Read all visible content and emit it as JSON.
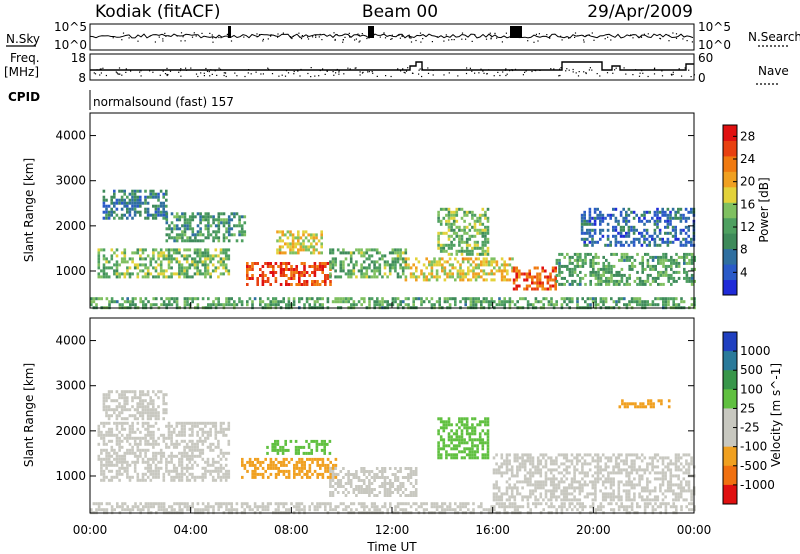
{
  "header": {
    "station": "Kodiak (fitACF)",
    "beam": "Beam 00",
    "date": "29/Apr/2009"
  },
  "params": {
    "nsky_label": "N.Sky",
    "nsearch_label": "N.Search",
    "noise_ticks": [
      "10^5",
      "10^0"
    ],
    "freq_label": "Freq.",
    "freq_unit": "[MHz]",
    "freq_ticks": [
      "18",
      "8"
    ],
    "nave_label": "Nave",
    "nave_ticks": [
      "60",
      "0"
    ],
    "cpid_label": "CPID",
    "cpid_value": "normalsound (fast) 157"
  },
  "chart_data": [
    {
      "type": "heatmap",
      "title": "",
      "xlabel": "Time UT",
      "ylabel": "Slant Range [km]",
      "x_ticks": [
        "00:00",
        "04:00",
        "08:00",
        "12:00",
        "16:00",
        "20:00",
        "00:00"
      ],
      "y_ticks": [
        1000,
        2000,
        3000,
        4000
      ],
      "xlim_hours": [
        0,
        24
      ],
      "ylim_km": [
        180,
        4500
      ],
      "colorbar": {
        "label": "Power [dB]",
        "ticks": [
          "4",
          "8",
          "12",
          "16",
          "20",
          "24",
          "28"
        ],
        "range": [
          0,
          30
        ],
        "colors": [
          "#1f2bd8",
          "#2a5ac8",
          "#2f6fa0",
          "#3e8a5a",
          "#4ea060",
          "#7fc060",
          "#e3d23a",
          "#f0a020",
          "#f07a10",
          "#e84010",
          "#e01010"
        ]
      },
      "echo_regions": [
        {
          "t0": 0.0,
          "t1": 24.0,
          "r0": 200,
          "r1": 420,
          "value": 12
        },
        {
          "t0": 0.3,
          "t1": 5.5,
          "r0": 900,
          "r1": 1500,
          "value": 14
        },
        {
          "t0": 0.5,
          "t1": 3.0,
          "r0": 2200,
          "r1": 2800,
          "value": 8
        },
        {
          "t0": 3.0,
          "t1": 6.2,
          "r0": 1700,
          "r1": 2300,
          "value": 11
        },
        {
          "t0": 6.2,
          "t1": 9.6,
          "r0": 700,
          "r1": 1200,
          "value": 26
        },
        {
          "t0": 7.4,
          "t1": 9.2,
          "r0": 1400,
          "r1": 1900,
          "value": 18
        },
        {
          "t0": 9.5,
          "t1": 12.5,
          "r0": 900,
          "r1": 1500,
          "value": 13
        },
        {
          "t0": 12.5,
          "t1": 16.8,
          "r0": 800,
          "r1": 1300,
          "value": 18
        },
        {
          "t0": 13.8,
          "t1": 15.8,
          "r0": 1400,
          "r1": 2400,
          "value": 14
        },
        {
          "t0": 16.8,
          "t1": 18.5,
          "r0": 600,
          "r1": 1100,
          "value": 25
        },
        {
          "t0": 18.5,
          "t1": 24.0,
          "r0": 700,
          "r1": 1400,
          "value": 12
        },
        {
          "t0": 19.5,
          "t1": 24.0,
          "r0": 1600,
          "r1": 2400,
          "value": 6
        }
      ]
    },
    {
      "type": "heatmap",
      "title": "",
      "xlabel": "Time UT",
      "ylabel": "Slant Range [km]",
      "x_ticks": [
        "00:00",
        "04:00",
        "08:00",
        "12:00",
        "16:00",
        "20:00",
        "00:00"
      ],
      "y_ticks": [
        1000,
        2000,
        3000,
        4000
      ],
      "xlim_hours": [
        0,
        24
      ],
      "ylim_km": [
        180,
        4500
      ],
      "colorbar": {
        "label": "Velocity [m s^-1]",
        "ticks": [
          "1000",
          "500",
          "100",
          "25",
          "-25",
          "-100",
          "-500",
          "-1000"
        ],
        "levels": [
          1000,
          500,
          100,
          25,
          -25,
          -100,
          -500,
          -1000
        ],
        "colors": [
          "#2040c0",
          "#2a7a9a",
          "#38964a",
          "#60c040",
          "#c8c8c0",
          "#c8c8c0",
          "#f0a020",
          "#f07010",
          "#e01010"
        ]
      },
      "echo_regions": [
        {
          "t0": 0.0,
          "t1": 24.0,
          "r0": 200,
          "r1": 420,
          "value": 0
        },
        {
          "t0": 0.3,
          "t1": 5.5,
          "r0": 900,
          "r1": 2200,
          "value": 0
        },
        {
          "t0": 0.5,
          "t1": 3.0,
          "r0": 2300,
          "r1": 2900,
          "value": 0
        },
        {
          "t0": 6.0,
          "t1": 9.8,
          "r0": 1000,
          "r1": 1400,
          "value": -120
        },
        {
          "t0": 7.0,
          "t1": 9.5,
          "r0": 1500,
          "r1": 1800,
          "value": 60
        },
        {
          "t0": 9.5,
          "t1": 13.0,
          "r0": 600,
          "r1": 1200,
          "value": 0
        },
        {
          "t0": 13.8,
          "t1": 15.8,
          "r0": 1400,
          "r1": 2300,
          "value": 60
        },
        {
          "t0": 16.0,
          "t1": 24.0,
          "r0": 500,
          "r1": 1500,
          "value": 0
        },
        {
          "t0": 21.0,
          "t1": 23.2,
          "r0": 2550,
          "r1": 2700,
          "value": -200
        }
      ]
    }
  ]
}
